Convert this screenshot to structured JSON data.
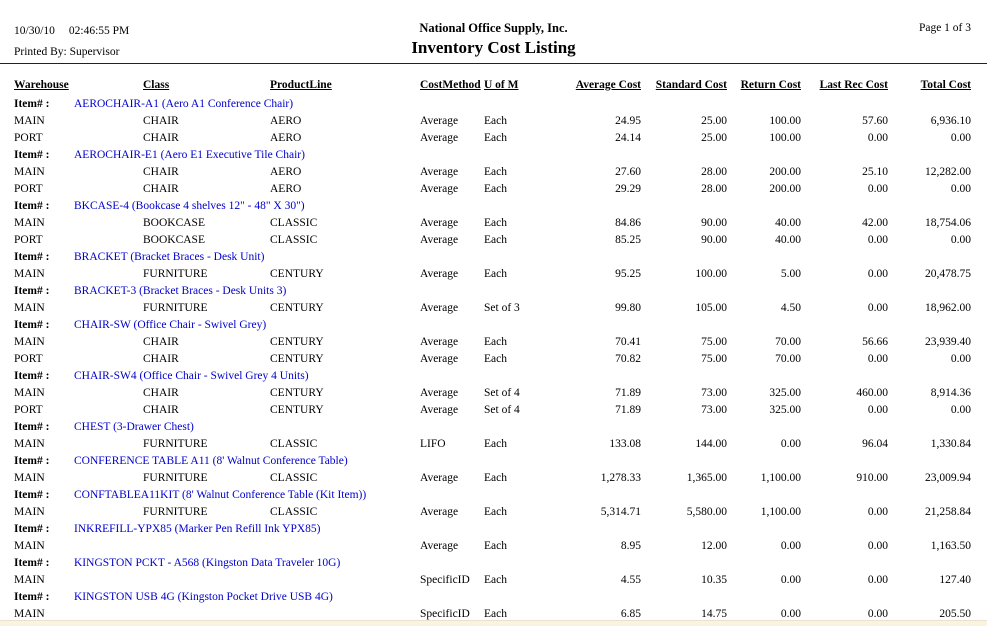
{
  "header": {
    "date": "10/30/10",
    "time": "02:46:55 PM",
    "printed_by": "Printed By: Supervisor",
    "company": "National Office Supply, Inc.",
    "title": "Inventory Cost Listing",
    "page": "Page 1 of 3"
  },
  "table": {
    "item_label": "Item# :",
    "columns": [
      "Warehouse",
      "Class",
      "ProductLine",
      "CostMethod",
      "U of M",
      "Average Cost",
      "Standard Cost",
      "Return Cost",
      "Last Rec Cost",
      "Total Cost"
    ],
    "groups": [
      {
        "item": "AEROCHAIR-A1 (Aero A1 Conference Chair)",
        "rows": [
          {
            "warehouse": "MAIN",
            "class": "CHAIR",
            "product_line": "AERO",
            "cost_method": "Average",
            "uom": "Each",
            "average_cost": "24.95",
            "standard_cost": "25.00",
            "return_cost": "100.00",
            "last_rec_cost": "57.60",
            "total_cost": "6,936.10"
          },
          {
            "warehouse": "PORT",
            "class": "CHAIR",
            "product_line": "AERO",
            "cost_method": "Average",
            "uom": "Each",
            "average_cost": "24.14",
            "standard_cost": "25.00",
            "return_cost": "100.00",
            "last_rec_cost": "0.00",
            "total_cost": "0.00"
          }
        ]
      },
      {
        "item": "AEROCHAIR-E1 (Aero E1 Executive Tile Chair)",
        "rows": [
          {
            "warehouse": "MAIN",
            "class": "CHAIR",
            "product_line": "AERO",
            "cost_method": "Average",
            "uom": "Each",
            "average_cost": "27.60",
            "standard_cost": "28.00",
            "return_cost": "200.00",
            "last_rec_cost": "25.10",
            "total_cost": "12,282.00"
          },
          {
            "warehouse": "PORT",
            "class": "CHAIR",
            "product_line": "AERO",
            "cost_method": "Average",
            "uom": "Each",
            "average_cost": "29.29",
            "standard_cost": "28.00",
            "return_cost": "200.00",
            "last_rec_cost": "0.00",
            "total_cost": "0.00"
          }
        ]
      },
      {
        "item": "BKCASE-4 (Bookcase 4 shelves 12\" - 48\" X 30\")",
        "rows": [
          {
            "warehouse": "MAIN",
            "class": "BOOKCASE",
            "product_line": "CLASSIC",
            "cost_method": "Average",
            "uom": "Each",
            "average_cost": "84.86",
            "standard_cost": "90.00",
            "return_cost": "40.00",
            "last_rec_cost": "42.00",
            "total_cost": "18,754.06"
          },
          {
            "warehouse": "PORT",
            "class": "BOOKCASE",
            "product_line": "CLASSIC",
            "cost_method": "Average",
            "uom": "Each",
            "average_cost": "85.25",
            "standard_cost": "90.00",
            "return_cost": "40.00",
            "last_rec_cost": "0.00",
            "total_cost": "0.00"
          }
        ]
      },
      {
        "item": "BRACKET (Bracket Braces - Desk Unit)",
        "rows": [
          {
            "warehouse": "MAIN",
            "class": "FURNITURE",
            "product_line": "CENTURY",
            "cost_method": "Average",
            "uom": "Each",
            "average_cost": "95.25",
            "standard_cost": "100.00",
            "return_cost": "5.00",
            "last_rec_cost": "0.00",
            "total_cost": "20,478.75"
          }
        ]
      },
      {
        "item": "BRACKET-3 (Bracket Braces - Desk Units 3)",
        "rows": [
          {
            "warehouse": "MAIN",
            "class": "FURNITURE",
            "product_line": "CENTURY",
            "cost_method": "Average",
            "uom": "Set of 3",
            "average_cost": "99.80",
            "standard_cost": "105.00",
            "return_cost": "4.50",
            "last_rec_cost": "0.00",
            "total_cost": "18,962.00"
          }
        ]
      },
      {
        "item": "CHAIR-SW (Office Chair - Swivel Grey)",
        "rows": [
          {
            "warehouse": "MAIN",
            "class": "CHAIR",
            "product_line": "CENTURY",
            "cost_method": "Average",
            "uom": "Each",
            "average_cost": "70.41",
            "standard_cost": "75.00",
            "return_cost": "70.00",
            "last_rec_cost": "56.66",
            "total_cost": "23,939.40"
          },
          {
            "warehouse": "PORT",
            "class": "CHAIR",
            "product_line": "CENTURY",
            "cost_method": "Average",
            "uom": "Each",
            "average_cost": "70.82",
            "standard_cost": "75.00",
            "return_cost": "70.00",
            "last_rec_cost": "0.00",
            "total_cost": "0.00"
          }
        ]
      },
      {
        "item": "CHAIR-SW4 (Office Chair - Swivel Grey 4 Units)",
        "rows": [
          {
            "warehouse": "MAIN",
            "class": "CHAIR",
            "product_line": "CENTURY",
            "cost_method": "Average",
            "uom": "Set of 4",
            "average_cost": "71.89",
            "standard_cost": "73.00",
            "return_cost": "325.00",
            "last_rec_cost": "460.00",
            "total_cost": "8,914.36"
          },
          {
            "warehouse": "PORT",
            "class": "CHAIR",
            "product_line": "CENTURY",
            "cost_method": "Average",
            "uom": "Set of 4",
            "average_cost": "71.89",
            "standard_cost": "73.00",
            "return_cost": "325.00",
            "last_rec_cost": "0.00",
            "total_cost": "0.00"
          }
        ]
      },
      {
        "item": "CHEST (3-Drawer Chest)",
        "rows": [
          {
            "warehouse": "MAIN",
            "class": "FURNITURE",
            "product_line": "CLASSIC",
            "cost_method": "LIFO",
            "uom": "Each",
            "average_cost": "133.08",
            "standard_cost": "144.00",
            "return_cost": "0.00",
            "last_rec_cost": "96.04",
            "total_cost": "1,330.84"
          }
        ]
      },
      {
        "item": "CONFERENCE TABLE A11 (8' Walnut Conference Table)",
        "rows": [
          {
            "warehouse": "MAIN",
            "class": "FURNITURE",
            "product_line": "CLASSIC",
            "cost_method": "Average",
            "uom": "Each",
            "average_cost": "1,278.33",
            "standard_cost": "1,365.00",
            "return_cost": "1,100.00",
            "last_rec_cost": "910.00",
            "total_cost": "23,009.94"
          }
        ]
      },
      {
        "item": "CONFTABLEA11KIT (8' Walnut Conference Table (Kit Item))",
        "rows": [
          {
            "warehouse": "MAIN",
            "class": "FURNITURE",
            "product_line": "CLASSIC",
            "cost_method": "Average",
            "uom": "Each",
            "average_cost": "5,314.71",
            "standard_cost": "5,580.00",
            "return_cost": "1,100.00",
            "last_rec_cost": "0.00",
            "total_cost": "21,258.84"
          }
        ]
      },
      {
        "item": "INKREFILL-YPX85 (Marker Pen Refill Ink YPX85)",
        "rows": [
          {
            "warehouse": "MAIN",
            "class": "",
            "product_line": "",
            "cost_method": "Average",
            "uom": "Each",
            "average_cost": "8.95",
            "standard_cost": "12.00",
            "return_cost": "0.00",
            "last_rec_cost": "0.00",
            "total_cost": "1,163.50"
          }
        ]
      },
      {
        "item": "KINGSTON PCKT - A568 (Kingston Data Traveler 10G)",
        "rows": [
          {
            "warehouse": "MAIN",
            "class": "",
            "product_line": "",
            "cost_method": "SpecificID",
            "uom": "Each",
            "average_cost": "4.55",
            "standard_cost": "10.35",
            "return_cost": "0.00",
            "last_rec_cost": "0.00",
            "total_cost": "127.40"
          }
        ]
      },
      {
        "item": "KINGSTON USB 4G (Kingston Pocket Drive USB 4G)",
        "rows": [
          {
            "warehouse": "MAIN",
            "class": "",
            "product_line": "",
            "cost_method": "SpecificID",
            "uom": "Each",
            "average_cost": "6.85",
            "standard_cost": "14.75",
            "return_cost": "0.00",
            "last_rec_cost": "0.00",
            "total_cost": "205.50"
          }
        ]
      }
    ]
  },
  "colors": {
    "item_link_blue": "#0000CC",
    "text": "#000000",
    "page_background": "#FFFFFF",
    "bottom_strip": "#FAF3DF"
  }
}
